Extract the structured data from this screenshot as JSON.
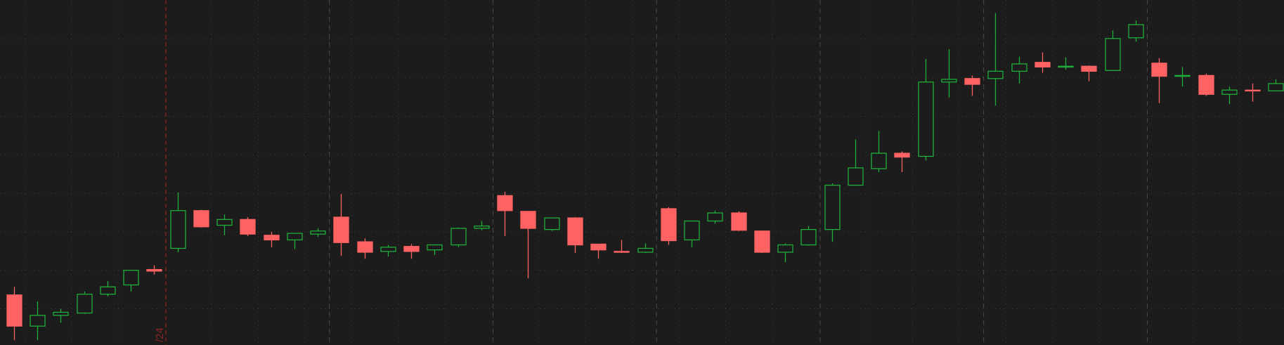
{
  "chart_data": {
    "type": "candlestick",
    "marker_label": "/24",
    "up_color": "#1fae3a",
    "down_color": "#ff6262",
    "background": "#1c1c1c",
    "ylim": [
      0.06,
      9.02
    ],
    "yticks": [
      1,
      2,
      3,
      4,
      5,
      6,
      7,
      8
    ],
    "grid": true,
    "open": [
      1.36,
      0.55,
      0.83,
      0.89,
      1.38,
      1.62,
      2.02,
      2.57,
      3.55,
      3.17,
      3.32,
      2.91,
      2.79,
      2.94,
      3.38,
      2.74,
      2.49,
      2.62,
      2.53,
      2.66,
      3.09,
      3.94,
      3.53,
      3.06,
      3.36,
      2.68,
      2.49,
      2.47,
      3.6,
      2.79,
      3.28,
      3.49,
      3.02,
      2.47,
      2.66,
      3.06,
      4.21,
      4.64,
      5.04,
      4.96,
      6.89,
      6.98,
      6.98,
      7.17,
      7.4,
      7.28,
      7.3,
      7.19,
      8.04,
      7.38,
      7.04,
      7.06,
      6.57,
      6.68,
      6.66
    ],
    "high": [
      1.57,
      1.19,
      1.0,
      1.45,
      1.72,
      2.0,
      2.13,
      4.02,
      3.57,
      3.45,
      3.38,
      3.0,
      2.96,
      3.09,
      3.98,
      2.83,
      2.66,
      2.68,
      2.66,
      3.11,
      3.28,
      4.04,
      3.53,
      3.36,
      3.38,
      2.68,
      2.79,
      2.7,
      3.64,
      3.28,
      3.55,
      3.53,
      3.02,
      2.7,
      3.15,
      4.26,
      5.4,
      5.62,
      5.09,
      7.49,
      7.74,
      7.06,
      8.68,
      7.55,
      7.66,
      7.53,
      7.32,
      8.23,
      8.49,
      7.51,
      7.28,
      7.11,
      6.77,
      6.85,
      6.96
    ],
    "low": [
      0.19,
      0.19,
      0.64,
      0.87,
      1.32,
      1.45,
      1.89,
      2.47,
      3.11,
      2.91,
      2.89,
      2.6,
      2.55,
      2.87,
      2.38,
      2.3,
      2.36,
      2.3,
      2.4,
      2.6,
      3.04,
      2.89,
      1.79,
      3.02,
      2.45,
      2.3,
      2.45,
      2.45,
      2.66,
      2.6,
      3.21,
      3.02,
      2.45,
      2.21,
      2.64,
      2.74,
      4.21,
      4.55,
      4.55,
      4.85,
      6.49,
      6.53,
      6.28,
      6.85,
      7.13,
      7.21,
      6.91,
      7.19,
      7.94,
      6.34,
      6.77,
      6.53,
      6.32,
      6.38,
      6.66
    ],
    "close": [
      0.55,
      0.83,
      0.91,
      1.38,
      1.57,
      2.0,
      1.98,
      3.55,
      3.13,
      3.32,
      2.94,
      2.79,
      2.96,
      3.02,
      2.72,
      2.47,
      2.6,
      2.49,
      2.66,
      3.09,
      3.15,
      3.55,
      3.09,
      3.36,
      2.66,
      2.53,
      2.47,
      2.57,
      2.77,
      3.28,
      3.49,
      3.04,
      2.47,
      2.66,
      3.06,
      4.21,
      4.66,
      5.04,
      4.94,
      6.89,
      6.96,
      6.83,
      7.17,
      7.36,
      7.28,
      7.3,
      7.17,
      8.02,
      8.38,
      7.04,
      7.06,
      6.57,
      6.68,
      6.66,
      6.85
    ]
  }
}
